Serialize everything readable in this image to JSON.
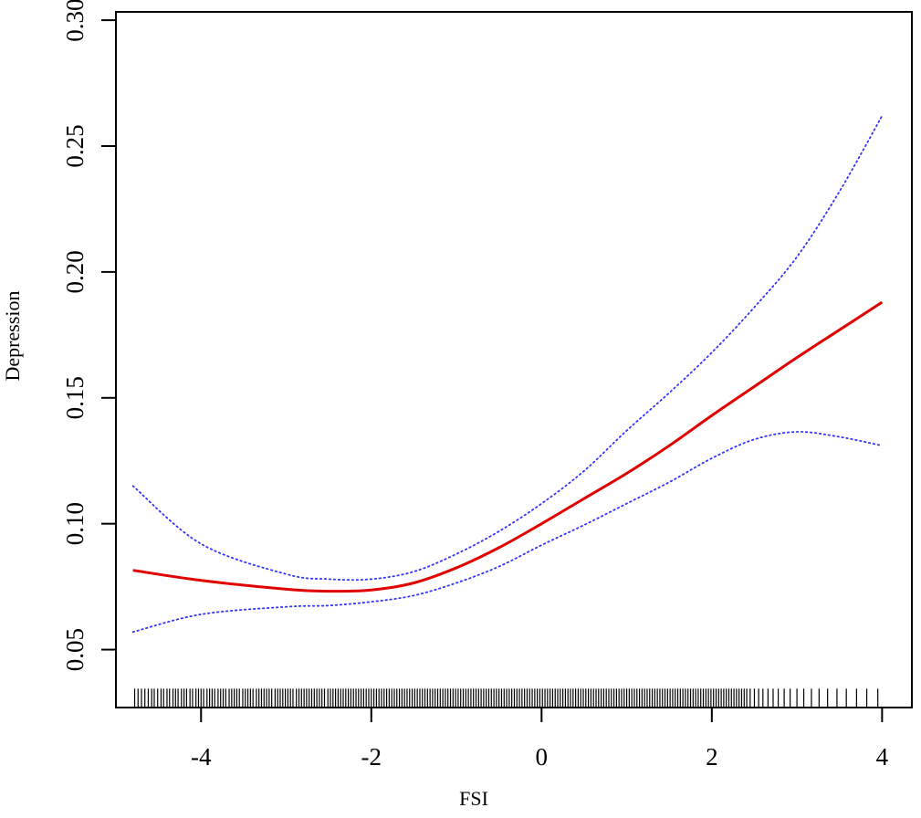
{
  "chart_data": {
    "type": "line",
    "title": "",
    "xlabel": "FSI",
    "ylabel": "Depression",
    "xlim": [
      -5.0,
      4.35
    ],
    "ylim": [
      0.027,
      0.3033
    ],
    "x_ticks": [
      -4,
      -2,
      0,
      2,
      4
    ],
    "x_tick_labels": [
      "-4",
      "-2",
      "0",
      "2",
      "4"
    ],
    "y_ticks": [
      0.05,
      0.1,
      0.15,
      0.2,
      0.25,
      0.3
    ],
    "y_tick_labels": [
      "0.05",
      "0.10",
      "0.15",
      "0.20",
      "0.25",
      "0.30"
    ],
    "grid": false,
    "legend": "none",
    "series": [
      {
        "role": "estimate",
        "color": "#e00000",
        "style": "solid",
        "x": [
          -4.8,
          -4.0,
          -3.0,
          -2.5,
          -2.0,
          -1.5,
          -1.0,
          -0.5,
          0.0,
          0.5,
          1.0,
          1.5,
          2.0,
          2.5,
          3.0,
          3.5,
          4.0
        ],
        "y": [
          0.0815,
          0.0775,
          0.074,
          0.0732,
          0.0737,
          0.0765,
          0.0825,
          0.0905,
          0.1,
          0.11,
          0.12,
          0.131,
          0.143,
          0.1545,
          0.166,
          0.177,
          0.188
        ]
      },
      {
        "role": "upper",
        "color": "#3333ff",
        "style": "dotted",
        "x": [
          -4.8,
          -4.0,
          -3.0,
          -2.5,
          -2.0,
          -1.5,
          -1.0,
          -0.5,
          0.0,
          0.5,
          1.0,
          1.5,
          2.0,
          2.5,
          3.0,
          3.5,
          4.0
        ],
        "y": [
          0.115,
          0.092,
          0.08,
          0.078,
          0.078,
          0.081,
          0.088,
          0.097,
          0.108,
          0.121,
          0.137,
          0.152,
          0.168,
          0.186,
          0.206,
          0.232,
          0.262
        ]
      },
      {
        "role": "lower",
        "color": "#3333ff",
        "style": "dotted",
        "x": [
          -4.8,
          -4.0,
          -3.0,
          -2.5,
          -2.0,
          -1.5,
          -1.0,
          -0.5,
          0.0,
          0.5,
          1.0,
          1.5,
          2.0,
          2.5,
          3.0,
          3.5,
          4.0
        ],
        "y": [
          0.057,
          0.064,
          0.067,
          0.0675,
          0.069,
          0.0715,
          0.0765,
          0.083,
          0.0915,
          0.0995,
          0.108,
          0.1165,
          0.126,
          0.1335,
          0.1365,
          0.1345,
          0.131
        ]
      }
    ],
    "rug": {
      "y_from": 0.027,
      "y_to": 0.0345,
      "x": [
        -4.78,
        -4.74,
        -4.7,
        -4.66,
        -4.62,
        -4.58,
        -4.55,
        -4.51,
        -4.47,
        -4.44,
        -4.4,
        -4.37,
        -4.33,
        -4.3,
        -4.27,
        -4.23,
        -4.2,
        -4.17,
        -4.13,
        -4.1,
        -4.06,
        -4.03,
        -4.0,
        -3.97,
        -3.93,
        -3.9,
        -3.87,
        -3.84,
        -3.8,
        -3.77,
        -3.74,
        -3.71,
        -3.67,
        -3.64,
        -3.61,
        -3.58,
        -3.55,
        -3.51,
        -3.48,
        -3.45,
        -3.42,
        -3.39,
        -3.35,
        -3.32,
        -3.29,
        -3.26,
        -3.23,
        -3.2,
        -3.17,
        -3.13,
        -3.1,
        -3.07,
        -3.04,
        -3.01,
        -2.98,
        -2.95,
        -2.92,
        -2.88,
        -2.85,
        -2.82,
        -2.79,
        -2.76,
        -2.73,
        -2.7,
        -2.67,
        -2.64,
        -2.61,
        -2.58,
        -2.55,
        -2.51,
        -2.48,
        -2.45,
        -2.42,
        -2.39,
        -2.36,
        -2.33,
        -2.3,
        -2.27,
        -2.24,
        -2.21,
        -2.18,
        -2.15,
        -2.12,
        -2.09,
        -2.06,
        -2.03,
        -2.0,
        -1.97,
        -1.94,
        -1.91,
        -1.88,
        -1.85,
        -1.82,
        -1.79,
        -1.76,
        -1.73,
        -1.7,
        -1.67,
        -1.64,
        -1.61,
        -1.58,
        -1.55,
        -1.52,
        -1.49,
        -1.46,
        -1.43,
        -1.4,
        -1.37,
        -1.34,
        -1.31,
        -1.28,
        -1.25,
        -1.22,
        -1.19,
        -1.16,
        -1.13,
        -1.1,
        -1.07,
        -1.04,
        -1.01,
        -0.98,
        -0.95,
        -0.92,
        -0.89,
        -0.86,
        -0.83,
        -0.8,
        -0.77,
        -0.74,
        -0.71,
        -0.68,
        -0.65,
        -0.62,
        -0.59,
        -0.56,
        -0.53,
        -0.5,
        -0.47,
        -0.44,
        -0.41,
        -0.38,
        -0.35,
        -0.32,
        -0.29,
        -0.26,
        -0.23,
        -0.2,
        -0.17,
        -0.14,
        -0.11,
        -0.08,
        -0.05,
        -0.02,
        0.01,
        0.04,
        0.07,
        0.1,
        0.13,
        0.16,
        0.19,
        0.22,
        0.25,
        0.28,
        0.31,
        0.34,
        0.37,
        0.4,
        0.43,
        0.46,
        0.49,
        0.52,
        0.55,
        0.58,
        0.61,
        0.64,
        0.67,
        0.7,
        0.73,
        0.76,
        0.79,
        0.82,
        0.85,
        0.88,
        0.91,
        0.94,
        0.97,
        1.0,
        1.03,
        1.06,
        1.09,
        1.12,
        1.15,
        1.18,
        1.21,
        1.24,
        1.27,
        1.3,
        1.33,
        1.36,
        1.39,
        1.42,
        1.45,
        1.48,
        1.51,
        1.54,
        1.57,
        1.6,
        1.63,
        1.66,
        1.69,
        1.72,
        1.75,
        1.78,
        1.81,
        1.84,
        1.87,
        1.9,
        1.93,
        1.96,
        1.99,
        2.02,
        2.05,
        2.08,
        2.11,
        2.14,
        2.17,
        2.2,
        2.23,
        2.26,
        2.29,
        2.32,
        2.35,
        2.38,
        2.41,
        2.45,
        2.5,
        2.55,
        2.6,
        2.66,
        2.72,
        2.78,
        2.85,
        2.92,
        3.0,
        3.08,
        3.17,
        3.26,
        3.36,
        3.47,
        3.58,
        3.7,
        3.82,
        3.95
      ]
    }
  }
}
